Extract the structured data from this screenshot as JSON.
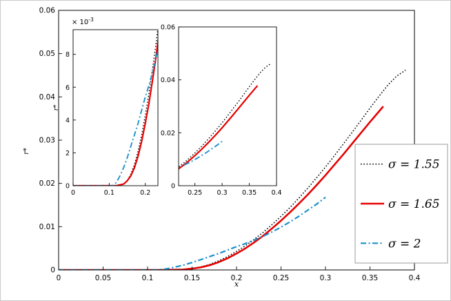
{
  "figure": {
    "background": "#ffffff",
    "axis_color": "#000000"
  },
  "chart_data": {
    "type": "line",
    "title": "",
    "xlabel": "x",
    "ylabel": "r*",
    "legend_position": "right-outside",
    "series": [
      {
        "name": "σ = 1.55",
        "color": "#000000",
        "style": "dotted",
        "width": 1.6,
        "points": [
          [
            0,
            0
          ],
          [
            0.05,
            0
          ],
          [
            0.1,
            0
          ],
          [
            0.12,
            0
          ],
          [
            0.14,
            0.0001
          ],
          [
            0.15,
            0.0003
          ],
          [
            0.16,
            0.0007
          ],
          [
            0.17,
            0.0013
          ],
          [
            0.18,
            0.0021
          ],
          [
            0.19,
            0.0031
          ],
          [
            0.2,
            0.0043
          ],
          [
            0.21,
            0.0056
          ],
          [
            0.22,
            0.0071
          ],
          [
            0.23,
            0.0087
          ],
          [
            0.24,
            0.0105
          ],
          [
            0.25,
            0.0124
          ],
          [
            0.26,
            0.0144
          ],
          [
            0.27,
            0.0166
          ],
          [
            0.28,
            0.0189
          ],
          [
            0.29,
            0.0213
          ],
          [
            0.3,
            0.0238
          ],
          [
            0.31,
            0.0264
          ],
          [
            0.32,
            0.0291
          ],
          [
            0.33,
            0.0318
          ],
          [
            0.34,
            0.0346
          ],
          [
            0.35,
            0.0374
          ],
          [
            0.36,
            0.0401
          ],
          [
            0.37,
            0.0427
          ],
          [
            0.38,
            0.0448
          ],
          [
            0.39,
            0.0462
          ]
        ]
      },
      {
        "name": "σ = 1.65",
        "color": "#e60000",
        "style": "solid",
        "width": 2.6,
        "points": [
          [
            0,
            0
          ],
          [
            0.05,
            0
          ],
          [
            0.1,
            0
          ],
          [
            0.12,
            0
          ],
          [
            0.14,
            0.0001
          ],
          [
            0.15,
            0.0003
          ],
          [
            0.16,
            0.0006
          ],
          [
            0.17,
            0.0011
          ],
          [
            0.18,
            0.0018
          ],
          [
            0.19,
            0.0027
          ],
          [
            0.2,
            0.0038
          ],
          [
            0.21,
            0.005
          ],
          [
            0.22,
            0.0064
          ],
          [
            0.23,
            0.0079
          ],
          [
            0.24,
            0.0096
          ],
          [
            0.25,
            0.0114
          ],
          [
            0.26,
            0.0133
          ],
          [
            0.27,
            0.0153
          ],
          [
            0.28,
            0.0174
          ],
          [
            0.29,
            0.0196
          ],
          [
            0.3,
            0.0219
          ],
          [
            0.31,
            0.0243
          ],
          [
            0.32,
            0.0267
          ],
          [
            0.33,
            0.0292
          ],
          [
            0.34,
            0.0317
          ],
          [
            0.35,
            0.0342
          ],
          [
            0.36,
            0.0366
          ],
          [
            0.365,
            0.0378
          ]
        ]
      },
      {
        "name": "σ = 2",
        "color": "#1b8fcc",
        "style": "dashdot",
        "width": 2.2,
        "points": [
          [
            0,
            0
          ],
          [
            0.05,
            0
          ],
          [
            0.09,
            0
          ],
          [
            0.11,
            0
          ],
          [
            0.12,
            0.0002
          ],
          [
            0.13,
            0.0006
          ],
          [
            0.14,
            0.0011
          ],
          [
            0.15,
            0.0017
          ],
          [
            0.16,
            0.0024
          ],
          [
            0.17,
            0.0031
          ],
          [
            0.18,
            0.0038
          ],
          [
            0.19,
            0.0046
          ],
          [
            0.2,
            0.0054
          ],
          [
            0.21,
            0.0061
          ],
          [
            0.22,
            0.0069
          ],
          [
            0.23,
            0.0078
          ],
          [
            0.24,
            0.0088
          ],
          [
            0.25,
            0.0099
          ],
          [
            0.26,
            0.0111
          ],
          [
            0.27,
            0.0124
          ],
          [
            0.28,
            0.0138
          ],
          [
            0.29,
            0.0152
          ],
          [
            0.3,
            0.0168
          ]
        ]
      }
    ],
    "main_axes": {
      "xlim": [
        0,
        0.4
      ],
      "ylim": [
        0,
        0.06
      ],
      "xticks": [
        0,
        0.05,
        0.1,
        0.15,
        0.2,
        0.25,
        0.3,
        0.35,
        0.4
      ],
      "xtick_labels": [
        "0",
        "0.05",
        "0.1",
        "0.15",
        "0.2",
        "0.25",
        "0.3",
        "0.35",
        "0.4"
      ],
      "yticks": [
        0,
        0.01,
        0.02,
        0.03,
        0.04,
        0.05,
        0.06
      ],
      "ytick_labels": [
        "0",
        "0.01",
        "0.02",
        "0.03",
        "0.04",
        "0.05",
        "0.06"
      ],
      "grid": false
    },
    "inset_left": {
      "xlim": [
        0,
        0.235
      ],
      "ylim": [
        0,
        0.0095
      ],
      "xticks": [
        0,
        0.1,
        0.2
      ],
      "xtick_labels": [
        "0",
        "0.1",
        "0.2"
      ],
      "yticks": [
        0,
        0.002,
        0.004,
        0.006,
        0.008
      ],
      "ytick_labels": [
        "0",
        "2",
        "4",
        "6",
        "8"
      ],
      "exp_label": {
        "base": "× 10",
        "exp": "-3"
      },
      "ylabel": "r*",
      "grid": false
    },
    "inset_right": {
      "xlim": [
        0.22,
        0.4
      ],
      "ylim": [
        0,
        0.06
      ],
      "xticks": [
        0.25,
        0.3,
        0.35,
        0.4
      ],
      "xtick_labels": [
        "0.25",
        "0.3",
        "0.35",
        "0.4"
      ],
      "yticks": [
        0,
        0.02,
        0.04,
        0.06
      ],
      "ytick_labels": [
        "0",
        "0.02",
        "0.04",
        "0.06"
      ],
      "grid": false
    }
  },
  "legend": {
    "entries": [
      {
        "label": "σ = 1.55"
      },
      {
        "label": "σ = 1.65"
      },
      {
        "label": "σ = 2"
      }
    ]
  }
}
